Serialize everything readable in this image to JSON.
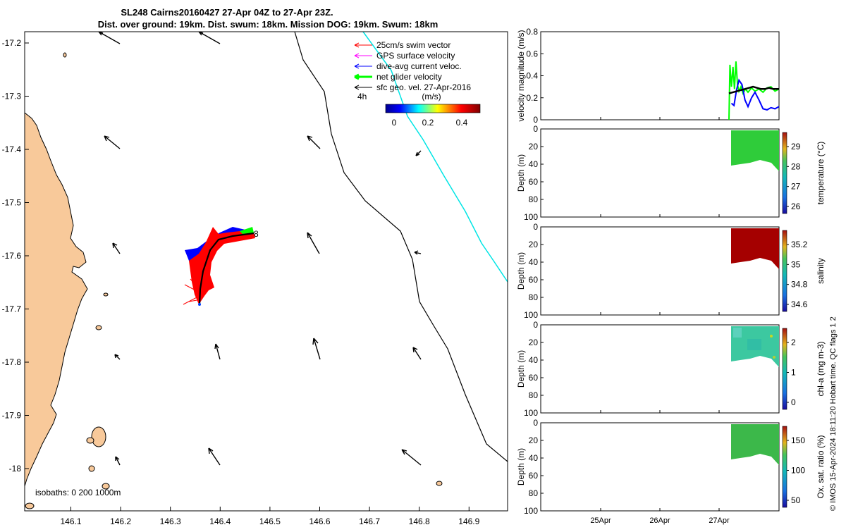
{
  "title": {
    "line1": "SL248 Cairns20160427 27-Apr 04Z to 27-Apr 23Z.",
    "line2": "Dist. over ground: 19km. Dist. swum: 18km. Mission DOG: 19km. Swum: 18km"
  },
  "credit": "© IMOS 15-Apr-2024 18:11:20 Hobart time. QC flags 1  2",
  "colors": {
    "land": "#f8c99a",
    "swim_vector": "#ff0000",
    "gps_velocity": "#ff00ff",
    "dive_avg_current": "#0000ff",
    "net_glider": "#00ff00",
    "sfc_geo": "#000000",
    "track_cyan": "#00e5e5",
    "temperature_fill": "#2fcc3a",
    "salinity_fill": "#a50000",
    "chla_fill": "#3cc8a0",
    "oxsat_fill": "#3cb84a"
  },
  "map": {
    "xticks": [
      "146.1",
      "146.2",
      "146.3",
      "146.4",
      "146.5",
      "146.6",
      "146.7",
      "146.8",
      "146.9"
    ],
    "yticks": [
      "-17.2",
      "-17.3",
      "-17.4",
      "-17.5",
      "-17.6",
      "-17.7",
      "-17.8",
      "-17.9",
      "-18"
    ],
    "legend": [
      {
        "label": "25cm/s swim vector",
        "color": "#ff0000",
        "thick": false
      },
      {
        "label": "GPS surface velocity",
        "color": "#ff00ff",
        "thick": false
      },
      {
        "label": "dive-avg current veloc.",
        "color": "#0000ff",
        "thick": false
      },
      {
        "label": "net glider velocity",
        "color": "#00ff00",
        "thick": true
      },
      {
        "label": "sfc geo. vel. 27-Apr-2016",
        "color": "#000000",
        "thick": false
      }
    ],
    "time_marker": "4h",
    "track_label": "8",
    "colorbar_unit": "(m/s)",
    "colorbar_ticks": [
      "0",
      "0.2",
      "0.4"
    ],
    "isobaths_label": "isobaths: 0   200  1000m"
  },
  "chart_data": [
    {
      "type": "line",
      "title": "",
      "ylabel": "velocity magnitude (m/s)",
      "ylim": [
        0,
        0.8
      ],
      "yticks": [
        "0",
        "0.2",
        "0.4",
        "0.6",
        "0.8"
      ],
      "series": [
        {
          "color": "#00ff00",
          "x": [
            0.0,
            0.02,
            0.05,
            0.08,
            0.11,
            0.14,
            0.17,
            0.2,
            0.24,
            0.28,
            0.33,
            0.38,
            0.45,
            0.52,
            0.6,
            0.68,
            0.76,
            0.84,
            0.92,
            1.0
          ],
          "y": [
            0.0,
            0.5,
            0.3,
            0.48,
            0.28,
            0.53,
            0.32,
            0.26,
            0.3,
            0.24,
            0.28,
            0.25,
            0.29,
            0.26,
            0.28,
            0.25,
            0.29,
            0.3,
            0.26,
            0.28
          ]
        },
        {
          "color": "#0000ff",
          "x": [
            0.05,
            0.1,
            0.15,
            0.2,
            0.26,
            0.32,
            0.38,
            0.45,
            0.52,
            0.6,
            0.68,
            0.76,
            0.84,
            0.92,
            1.0
          ],
          "y": [
            0.15,
            0.13,
            0.27,
            0.36,
            0.32,
            0.18,
            0.12,
            0.2,
            0.25,
            0.18,
            0.1,
            0.09,
            0.11,
            0.1,
            0.12
          ]
        },
        {
          "color": "#000000",
          "x": [
            0.0,
            0.08,
            0.16,
            0.24,
            0.32,
            0.4,
            0.48,
            0.56,
            0.64,
            0.72,
            0.8,
            0.88,
            1.0
          ],
          "y": [
            0.24,
            0.25,
            0.26,
            0.27,
            0.28,
            0.29,
            0.3,
            0.29,
            0.28,
            0.28,
            0.29,
            0.28,
            0.28
          ]
        }
      ]
    },
    {
      "type": "heatmap",
      "ylabel": "Depth (m)",
      "colorbar_label": "temperature (°C)",
      "colorbar_ticks": [
        "29",
        "28",
        "27",
        "26"
      ],
      "yticks": [
        "0",
        "20",
        "40",
        "60",
        "80",
        "100"
      ],
      "xticks": [
        "25Apr",
        "26Apr",
        "27Apr"
      ]
    },
    {
      "type": "heatmap",
      "ylabel": "Depth (m)",
      "colorbar_label": "salinity",
      "colorbar_ticks": [
        "35.2",
        "35",
        "34.8",
        "34.6"
      ],
      "yticks": [
        "0",
        "20",
        "40",
        "60",
        "80",
        "100"
      ],
      "xticks": [
        "25Apr",
        "26Apr",
        "27Apr"
      ]
    },
    {
      "type": "heatmap",
      "ylabel": "Depth (m)",
      "colorbar_label": "chl-a (mg m-3)",
      "colorbar_ticks": [
        "2",
        "1",
        "0"
      ],
      "yticks": [
        "0",
        "20",
        "40",
        "60",
        "80",
        "100"
      ],
      "xticks": [
        "25Apr",
        "26Apr",
        "27Apr"
      ]
    },
    {
      "type": "heatmap",
      "ylabel": "Depth (m)",
      "colorbar_label": "Ox. sat. ratio (%)",
      "colorbar_ticks": [
        "150",
        "100",
        "50"
      ],
      "yticks": [
        "0",
        "20",
        "40",
        "60",
        "80",
        "100"
      ],
      "xticks": [
        "25Apr",
        "26Apr",
        "27Apr"
      ]
    }
  ]
}
